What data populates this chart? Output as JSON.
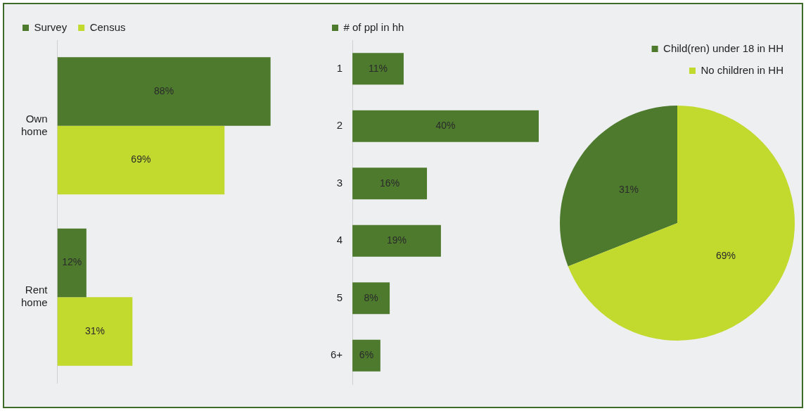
{
  "chart_data": [
    {
      "type": "bar",
      "orientation": "horizontal",
      "categories": [
        [
          "Own",
          "home"
        ],
        [
          "Rent",
          "home"
        ]
      ],
      "series": [
        {
          "name": "Survey",
          "color": "#4e7a2e",
          "values": [
            88,
            12
          ],
          "value_labels": [
            "88%",
            "12%"
          ]
        },
        {
          "name": "Census",
          "color": "#c2d92e",
          "values": [
            69,
            31
          ],
          "value_labels": [
            "69%",
            "31%"
          ]
        }
      ],
      "legend": "top left"
    },
    {
      "type": "bar",
      "orientation": "horizontal",
      "categories": [
        "1",
        "2",
        "3",
        "4",
        "5",
        "6+"
      ],
      "series": [
        {
          "name": "# of ppl in hh",
          "color": "#4e7a2e",
          "values": [
            11,
            40,
            16,
            19,
            8,
            6
          ],
          "value_labels": [
            "11%",
            "40%",
            "16%",
            "19%",
            "8%",
            "6%"
          ]
        }
      ],
      "legend": "top left"
    },
    {
      "type": "pie",
      "categories": [
        "Child(ren) under 18 in HH",
        "No children in HH"
      ],
      "values": [
        31,
        69
      ],
      "colors": [
        "#4e7a2e",
        "#c2d92e"
      ],
      "value_labels": [
        "31%",
        "69%"
      ],
      "legend": "top right"
    }
  ]
}
